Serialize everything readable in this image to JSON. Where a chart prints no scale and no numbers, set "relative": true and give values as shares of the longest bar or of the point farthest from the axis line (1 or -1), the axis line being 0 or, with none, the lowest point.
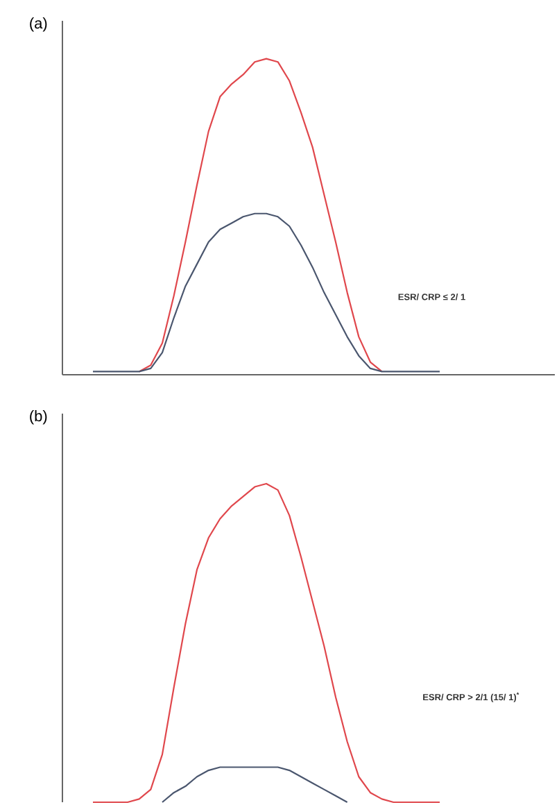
{
  "chart_data": [
    {
      "type": "line",
      "title": "(a)",
      "relative": true,
      "categories": [
        null,
        null,
        null,
        null,
        null,
        null,
        null,
        null,
        null,
        null,
        null,
        null,
        null,
        null,
        null,
        null,
        null,
        null,
        null,
        null,
        null,
        null,
        null,
        null,
        null,
        null,
        null,
        null,
        null,
        null,
        null
      ],
      "series": [
        {
          "color": "#e0474c",
          "values": [
            null,
            null,
            null,
            null,
            0.01,
            0.03,
            0.1,
            0.25,
            0.42,
            0.6,
            0.77,
            0.88,
            0.92,
            0.95,
            0.99,
            1,
            0.99,
            0.93,
            0.83,
            0.72,
            0.57,
            0.42,
            0.26,
            0.12,
            0.04,
            0.01,
            null,
            null,
            null,
            null,
            null
          ]
        },
        {
          "color": "#4a566e",
          "values": [
            0.01,
            0.01,
            0.01,
            0.01,
            0.01,
            0.02,
            0.07,
            0.18,
            0.28,
            0.35,
            0.42,
            0.46,
            0.48,
            0.5,
            0.51,
            0.51,
            0.5,
            0.47,
            0.41,
            0.34,
            0.26,
            0.19,
            0.12,
            0.06,
            0.02,
            0.01,
            0.01,
            0.01,
            0.01,
            0.01,
            0.01
          ]
        }
      ],
      "annotations": [
        "ESR/ CRP ≤ 2/ 1"
      ],
      "marker": "none",
      "line_style": "solid",
      "tick_labels": false
    },
    {
      "type": "line",
      "title": "(b)",
      "relative": true,
      "categories": [
        null,
        null,
        null,
        null,
        null,
        null,
        null,
        null,
        null,
        null,
        null,
        null,
        null,
        null,
        null,
        null,
        null,
        null,
        null,
        null,
        null,
        null,
        null,
        null,
        null,
        null,
        null,
        null,
        null,
        null,
        null
      ],
      "series": [
        {
          "color": "#e0474c",
          "values": [
            0,
            0,
            0,
            0,
            0.01,
            0.04,
            0.15,
            0.36,
            0.56,
            0.73,
            0.83,
            0.89,
            0.93,
            0.96,
            0.99,
            1,
            0.98,
            0.9,
            0.77,
            0.63,
            0.49,
            0.33,
            0.19,
            0.08,
            0.03,
            0.01,
            0,
            0,
            0,
            0,
            0
          ]
        },
        {
          "color": "#4a566e",
          "values": [
            null,
            null,
            null,
            null,
            null,
            null,
            0,
            0.03,
            0.05,
            0.08,
            0.1,
            0.11,
            0.11,
            0.11,
            0.11,
            0.11,
            0.11,
            0.1,
            0.08,
            0.06,
            0.04,
            0.02,
            0,
            null,
            null,
            null,
            null,
            null,
            null,
            null,
            null
          ]
        }
      ],
      "annotations": [
        "ESR/ CRP > 2/1 (15/ 1)$^{*}$"
      ],
      "marker": "none",
      "line_style": "solid",
      "tick_labels": false
    }
  ]
}
